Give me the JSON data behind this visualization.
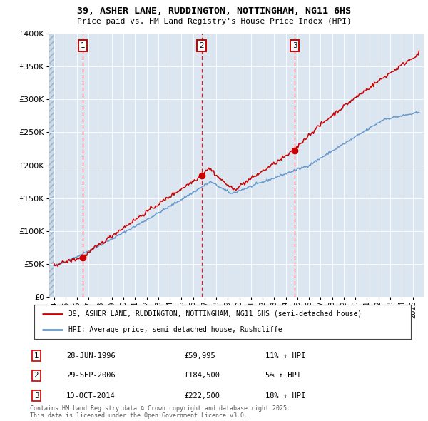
{
  "title_line1": "39, ASHER LANE, RUDDINGTON, NOTTINGHAM, NG11 6HS",
  "title_line2": "Price paid vs. HM Land Registry's House Price Index (HPI)",
  "y_ticks": [
    0,
    50000,
    100000,
    150000,
    200000,
    250000,
    300000,
    350000,
    400000
  ],
  "sale_prices": [
    59995,
    184500,
    222500
  ],
  "sale_labels": [
    "1",
    "2",
    "3"
  ],
  "sale_years": [
    1996.496,
    2006.747,
    2014.774
  ],
  "annotation_rows": [
    {
      "label": "1",
      "date": "28-JUN-1996",
      "price": "£59,995",
      "hpi": "11% ↑ HPI"
    },
    {
      "label": "2",
      "date": "29-SEP-2006",
      "price": "£184,500",
      "hpi": "5% ↑ HPI"
    },
    {
      "label": "3",
      "date": "10-OCT-2014",
      "price": "£222,500",
      "hpi": "18% ↑ HPI"
    }
  ],
  "legend_line1": "39, ASHER LANE, RUDDINGTON, NOTTINGHAM, NG11 6HS (semi-detached house)",
  "legend_line2": "HPI: Average price, semi-detached house, Rushcliffe",
  "footer": "Contains HM Land Registry data © Crown copyright and database right 2025.\nThis data is licensed under the Open Government Licence v3.0.",
  "bg_color": "#dce6f1",
  "sale_color": "#cc0000",
  "hpi_color": "#6699cc",
  "dashed_color": "#cc0000"
}
